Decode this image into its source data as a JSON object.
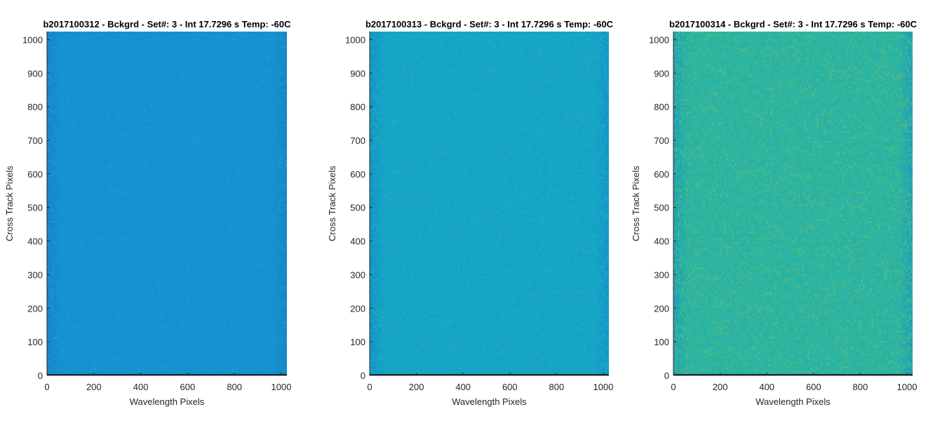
{
  "chart_data": [
    {
      "type": "heatmap",
      "title": "b2017100312 - Bckgrd - Set#: 3 - Int 17.7296 s Temp: -60C",
      "xlabel": "Wavelength Pixels",
      "ylabel": "Cross Track Pixels",
      "xlim": [
        0,
        1024
      ],
      "ylim": [
        0,
        1024
      ],
      "xticks": [
        0,
        200,
        400,
        600,
        800,
        1000
      ],
      "yticks": [
        0,
        100,
        200,
        300,
        400,
        500,
        600,
        700,
        800,
        900,
        1000
      ],
      "grid": false,
      "base_color": "#1591d1",
      "edge_color": "#1a82c6",
      "noise_color": "#1d9ad0"
    },
    {
      "type": "heatmap",
      "title": "b2017100313 - Bckgrd - Set#: 3 - Int 17.7296 s Temp: -60C",
      "xlabel": "Wavelength Pixels",
      "ylabel": "Cross Track Pixels",
      "xlim": [
        0,
        1024
      ],
      "ylim": [
        0,
        1024
      ],
      "xticks": [
        0,
        200,
        400,
        600,
        800,
        1000
      ],
      "yticks": [
        0,
        100,
        200,
        300,
        400,
        500,
        600,
        700,
        800,
        900,
        1000
      ],
      "grid": false,
      "base_color": "#15a3c6",
      "edge_color": "#1493c6",
      "noise_color": "#22afbd"
    },
    {
      "type": "heatmap",
      "title": "b2017100314 - Bckgrd - Set#: 3 - Int 17.7296 s Temp: -60C",
      "xlabel": "Wavelength Pixels",
      "ylabel": "Cross Track Pixels",
      "xlim": [
        0,
        1024
      ],
      "ylim": [
        0,
        1024
      ],
      "xticks": [
        0,
        200,
        400,
        600,
        800,
        1000
      ],
      "yticks": [
        0,
        100,
        200,
        300,
        400,
        500,
        600,
        700,
        800,
        900,
        1000
      ],
      "grid": false,
      "base_color": "#2ab3a2",
      "edge_color": "#1f9fb8",
      "noise_color": "#5cbd7f"
    }
  ]
}
